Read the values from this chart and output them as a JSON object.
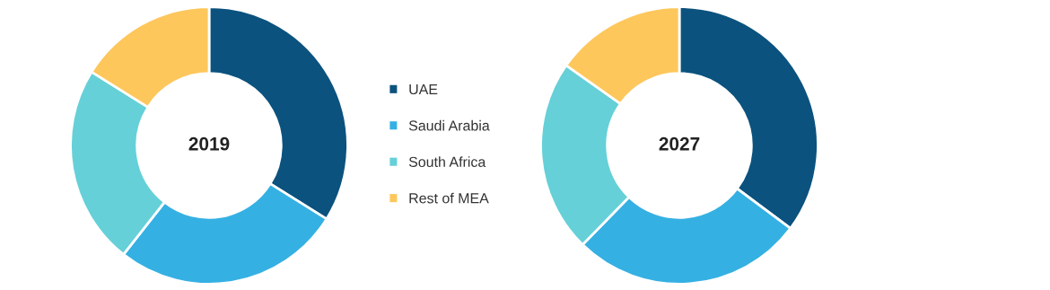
{
  "chart_data": [
    {
      "type": "donut",
      "title": "2019",
      "categories": [
        "UAE",
        "Saudi Arabia",
        "South Africa",
        "Rest of MEA"
      ],
      "values": [
        33.9,
        26.7,
        23.3,
        16.1
      ],
      "colors": [
        "#0b527e",
        "#35b0e3",
        "#65d0d8",
        "#fdc75c"
      ],
      "legend": "right"
    },
    {
      "type": "donut",
      "title": "2027",
      "categories": [
        null,
        null,
        null,
        null
      ],
      "values": [
        35.2,
        27.1,
        22.5,
        15.2
      ],
      "colors": [
        "#0b527e",
        "#35b0e3",
        "#65d0d8",
        "#fdc75c"
      ]
    }
  ]
}
